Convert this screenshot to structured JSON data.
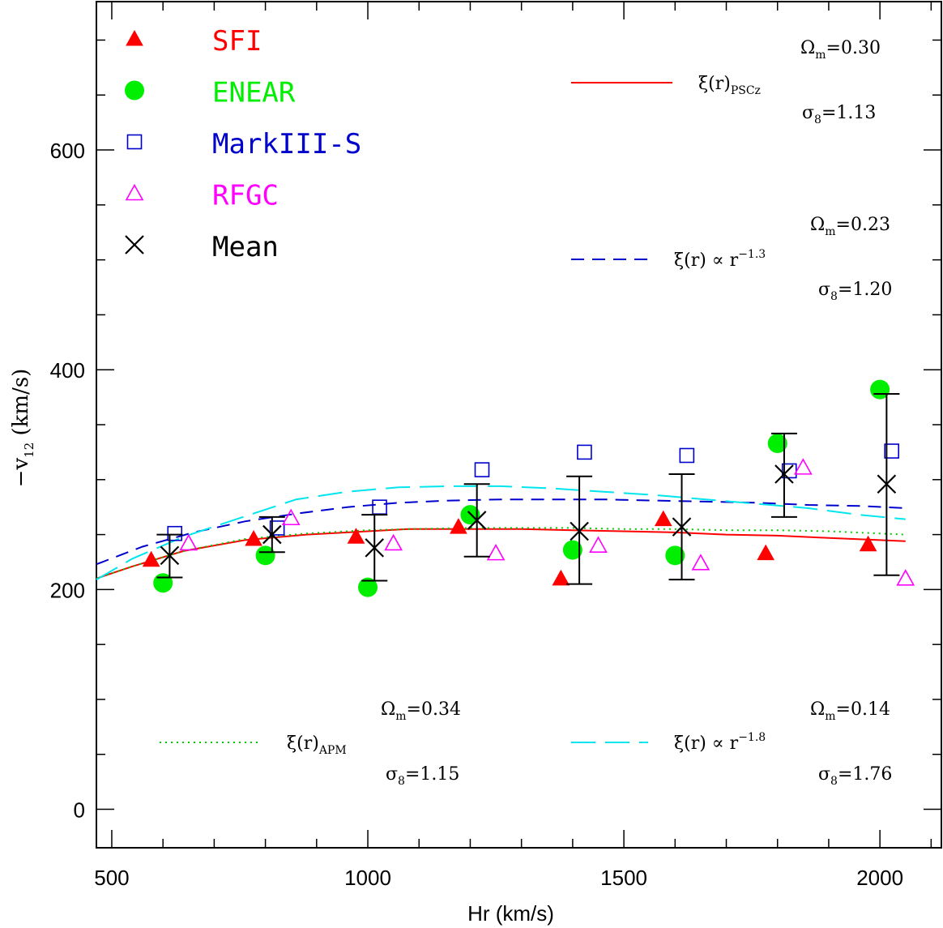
{
  "chart_data": {
    "type": "scatter",
    "xlabel": "Hr (km/s)",
    "ylabel": "−v",
    "ylabel_sub": "12",
    "ylabel_unit": "(km/s)",
    "xlim": [
      470,
      2120
    ],
    "ylim": [
      -35,
      735
    ],
    "xticks": [
      500,
      1000,
      1500,
      2000
    ],
    "yticks": [
      0,
      200,
      400,
      600
    ],
    "x_minor_step": 100,
    "y_minor_step": 50,
    "grid": false,
    "legend_position": "top-left",
    "series": [
      {
        "name": "SFI",
        "marker": "filled-triangle",
        "color": "#ff0000",
        "x": [
          577,
          777,
          977,
          1177,
          1377,
          1577,
          1777,
          1977
        ],
        "y": [
          227,
          246,
          248,
          257,
          210,
          264,
          233,
          241
        ]
      },
      {
        "name": "ENEAR",
        "marker": "filled-circle",
        "color": "#00ee00",
        "x": [
          600,
          800,
          1000,
          1200,
          1400,
          1600,
          1800,
          2000
        ],
        "y": [
          206,
          231,
          202,
          268,
          236,
          231,
          333,
          382
        ]
      },
      {
        "name": "MarkIII-S",
        "marker": "open-square",
        "color": "#0000cc",
        "x": [
          623,
          823,
          1023,
          1223,
          1423,
          1623,
          1823,
          2023
        ],
        "y": [
          251,
          256,
          275,
          309,
          325,
          322,
          308,
          326
        ]
      },
      {
        "name": "RFGC",
        "marker": "open-triangle",
        "color": "#ff00ff",
        "x": [
          650,
          850,
          1050,
          1250,
          1450,
          1650,
          1850,
          2050
        ],
        "y": [
          242,
          265,
          242,
          233,
          240,
          224,
          311,
          210
        ]
      },
      {
        "name": "Mean",
        "marker": "cross",
        "color": "#000000",
        "x": [
          613,
          813,
          1013,
          1213,
          1413,
          1613,
          1813,
          2013
        ],
        "y": [
          231,
          250,
          238,
          263,
          253,
          257,
          305,
          296
        ],
        "err_low": [
          211,
          234,
          208,
          230,
          205,
          209,
          266,
          213
        ],
        "err_high": [
          250,
          266,
          268,
          296,
          303,
          305,
          342,
          378
        ]
      }
    ],
    "curves": [
      {
        "label": "ξ(r)",
        "label_sub": "PSCz",
        "style": "solid",
        "color": "#ff0000",
        "x": [
          470,
          540,
          640,
          760,
          880,
          1000,
          1080,
          1200,
          1300,
          1400,
          1500,
          1600,
          1700,
          1800,
          1900,
          2000,
          2050
        ],
        "y": [
          210,
          221,
          235,
          245,
          250,
          253,
          255,
          255,
          255,
          254,
          253,
          252,
          250,
          249,
          247,
          245,
          244
        ]
      },
      {
        "label": "ξ(r)",
        "label_sub": "APM",
        "style": "dotted",
        "color": "#00cc00",
        "x": [
          470,
          540,
          640,
          760,
          880,
          1000,
          1080,
          1200,
          1300,
          1400,
          1500,
          1600,
          1700,
          1800,
          1900,
          2000,
          2050
        ],
        "y": [
          210,
          221,
          235,
          246,
          251,
          254,
          255,
          256,
          256,
          256,
          255,
          255,
          254,
          254,
          253,
          251,
          250
        ]
      },
      {
        "label": "ξ(r) ∝ r",
        "label_sup": "−1.3",
        "style": "dashed",
        "color": "#0000cc",
        "x": [
          470,
          560,
          660,
          760,
          860,
          960,
          1060,
          1160,
          1260,
          1360,
          1460,
          1560,
          1660,
          1760,
          1860,
          1960,
          2050
        ],
        "y": [
          223,
          239,
          252,
          262,
          269,
          275,
          279,
          281,
          282,
          282,
          282,
          281,
          280,
          279,
          277,
          276,
          274
        ]
      },
      {
        "label": "ξ(r) ∝ r",
        "label_sup": "−1.8",
        "style": "long-dashed",
        "color": "#00e5ee",
        "x": [
          470,
          540,
          640,
          750,
          860,
          960,
          1060,
          1160,
          1260,
          1360,
          1460,
          1560,
          1660,
          1760,
          1860,
          1960,
          2050
        ],
        "y": [
          209,
          228,
          248,
          265,
          282,
          289,
          293,
          294,
          294,
          292,
          289,
          286,
          282,
          278,
          274,
          268,
          264
        ]
      }
    ],
    "legend": [
      {
        "name": "SFI",
        "color": "#ff0000",
        "marker": "filled-triangle"
      },
      {
        "name": "ENEAR",
        "color": "#00ee00",
        "marker": "filled-circle"
      },
      {
        "name": "MarkIII-S",
        "color": "#0000cc",
        "marker": "open-square"
      },
      {
        "name": "RFGC",
        "color": "#ff00ff",
        "marker": "open-triangle"
      },
      {
        "name": "Mean",
        "color": "#000000",
        "marker": "cross"
      }
    ],
    "annotations": [
      {
        "key": "pscz",
        "omega": "0.30",
        "sigma": "1.13"
      },
      {
        "key": "pl13",
        "omega": "0.23",
        "sigma": "1.20"
      },
      {
        "key": "apm",
        "omega": "0.34",
        "sigma": "1.15"
      },
      {
        "key": "pl18",
        "omega": "0.14",
        "sigma": "1.76"
      }
    ],
    "symbols": {
      "omega": "Ω",
      "omega_sub": "m",
      "sigma": "σ",
      "sigma_sub": "8",
      "equals": "="
    }
  }
}
